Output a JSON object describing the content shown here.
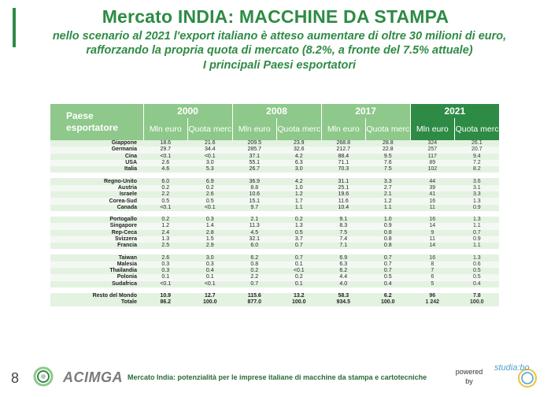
{
  "header": {
    "title": "Mercato INDIA: MACCHINE DA STAMPA",
    "subtitle_line1": "nello scenario al 2021 l'export italiano è atteso aumentare di oltre 30 milioni di euro,",
    "subtitle_line2": "rafforzando la propria quota di mercato (8.2%, a fronte del 7.5% attuale)",
    "subtitle_line3": "I principali Paesi esportatori"
  },
  "table": {
    "country_header": "Paese esportatore",
    "years": [
      "2000",
      "2008",
      "2017",
      "2021"
    ],
    "sub_headers": {
      "mln": "Mln euro",
      "quota": "Quota merc"
    },
    "groups": [
      [
        [
          "Giappone",
          "18.6",
          "21.6",
          "209.5",
          "23.9",
          "268.8",
          "28.8",
          "324",
          "26.1"
        ],
        [
          "Germania",
          "29.7",
          "34.4",
          "285.7",
          "32.6",
          "212.7",
          "22.8",
          "257",
          "20.7"
        ],
        [
          "Cina",
          "<0.1",
          "<0.1",
          "37.1",
          "4.2",
          "88.4",
          "9.5",
          "117",
          "9.4"
        ],
        [
          "USA",
          "2.6",
          "3.0",
          "55.1",
          "6.3",
          "71.1",
          "7.6",
          "89",
          "7.2"
        ],
        [
          "Italia",
          "4.6",
          "5.3",
          "26.7",
          "3.0",
          "70.3",
          "7.5",
          "102",
          "8.2"
        ]
      ],
      [
        [
          "Regno-Unito",
          "6.0",
          "6.9",
          "36.9",
          "4.2",
          "31.1",
          "3.3",
          "44",
          "3.6"
        ],
        [
          "Austria",
          "0.2",
          "0.2",
          "8.8",
          "1.0",
          "25.1",
          "2.7",
          "39",
          "3.1"
        ],
        [
          "Israele",
          "2.2",
          "2.6",
          "10.6",
          "1.2",
          "19.6",
          "2.1",
          "41",
          "3.3"
        ],
        [
          "Corea-Sud",
          "0.5",
          "0.5",
          "15.1",
          "1.7",
          "11.6",
          "1.2",
          "16",
          "1.3"
        ],
        [
          "Canada",
          "<0.1",
          "<0.1",
          "9.7",
          "1.1",
          "10.4",
          "1.1",
          "11",
          "0.9"
        ]
      ],
      [
        [
          "Portogallo",
          "0.2",
          "0.3",
          "2.1",
          "0.2",
          "9.1",
          "1.0",
          "16",
          "1.3"
        ],
        [
          "Singapore",
          "1.2",
          "1.4",
          "11.3",
          "1.3",
          "8.3",
          "0.9",
          "14",
          "1.1"
        ],
        [
          "Rep-Ceca",
          "2.4",
          "2.8",
          "4.5",
          "0.5",
          "7.5",
          "0.8",
          "9",
          "0.7"
        ],
        [
          "Svizzera",
          "1.3",
          "1.5",
          "32.1",
          "3.7",
          "7.4",
          "0.8",
          "11",
          "0.9"
        ],
        [
          "Francia",
          "2.5",
          "2.9",
          "6.0",
          "0.7",
          "7.1",
          "0.8",
          "14",
          "1.1"
        ]
      ],
      [
        [
          "Taiwan",
          "2.6",
          "3.0",
          "6.2",
          "0.7",
          "6.9",
          "0.7",
          "16",
          "1.3"
        ],
        [
          "Malesia",
          "0.3",
          "0.3",
          "0.8",
          "0.1",
          "6.3",
          "0.7",
          "8",
          "0.6"
        ],
        [
          "Thailandia",
          "0.3",
          "0.4",
          "0.2",
          "<0.1",
          "6.2",
          "0.7",
          "7",
          "0.5"
        ],
        [
          "Polonia",
          "0.1",
          "0.1",
          "2.2",
          "0.2",
          "4.4",
          "0.5",
          "6",
          "0.5"
        ],
        [
          "Sudafrica",
          "<0.1",
          "<0.1",
          "0.7",
          "0.1",
          "4.0",
          "0.4",
          "5",
          "0.4"
        ]
      ]
    ],
    "totals": [
      [
        "Resto del Mondo",
        "10.9",
        "12.7",
        "115.6",
        "13.2",
        "58.3",
        "6.2",
        "96",
        "7.8"
      ],
      [
        "Totale",
        "86.2",
        "100.0",
        "877.0",
        "100.0",
        "934.5",
        "100.0",
        "1 242",
        "100.0"
      ]
    ]
  },
  "footer": {
    "page_number": "8",
    "logo_text": "ACIMGA",
    "text": "Mercato India: potenzialità per le imprese italiane di macchine da stampa e cartotecniche",
    "powered_by": "powered by",
    "studia_logo": "studia:bo"
  },
  "colors": {
    "accent": "#2e8b45",
    "header_light": "#8ec88a",
    "row_tint": "#e4f2e2"
  }
}
